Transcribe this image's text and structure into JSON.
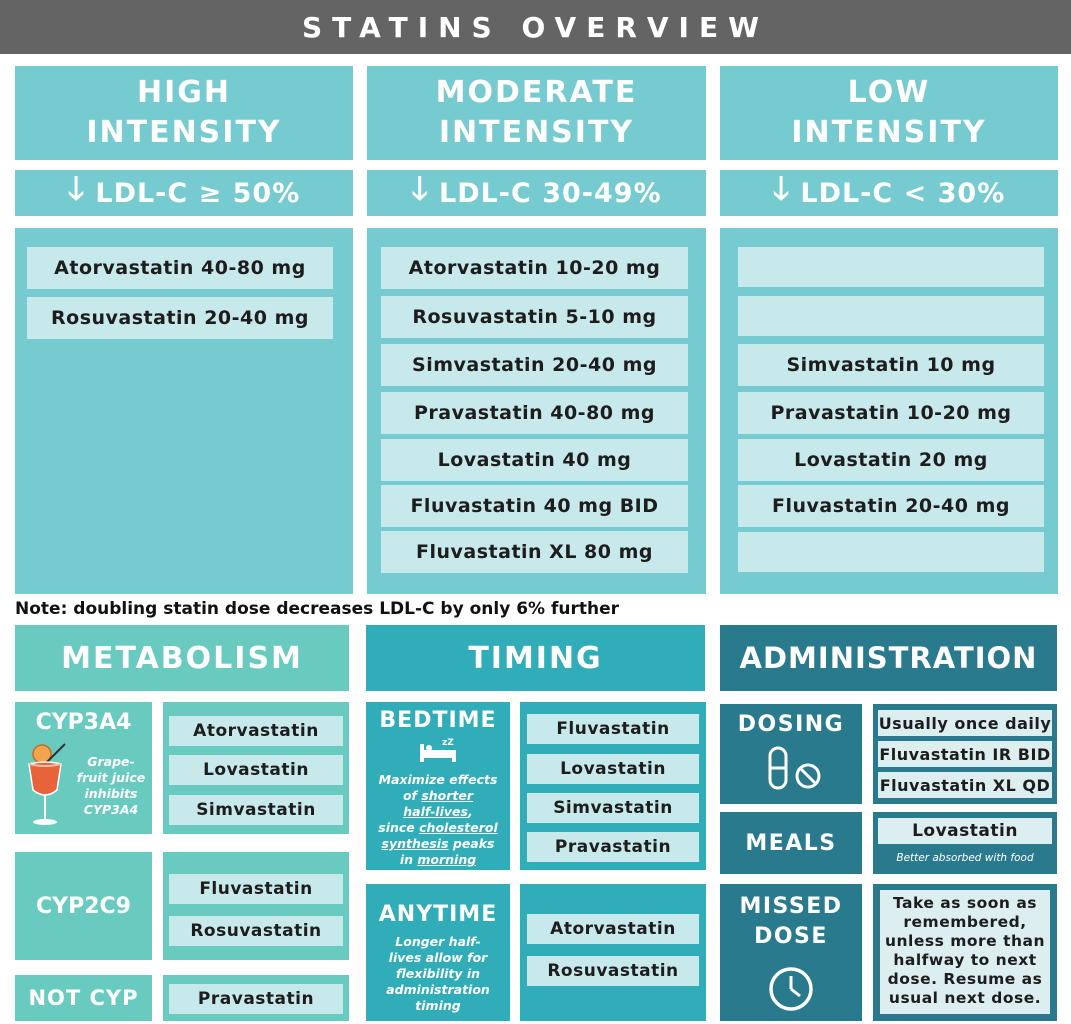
{
  "title": "STATINS OVERVIEW",
  "intensity": {
    "high": {
      "line1": "HIGH",
      "line2": "INTENSITY",
      "ldl": "LDL-C ≥ 50%",
      "drugs": [
        "Atorvastatin 40-80 mg",
        "Rosuvastatin 20-40 mg"
      ]
    },
    "moderate": {
      "line1": "MODERATE",
      "line2": "INTENSITY",
      "ldl": "LDL-C 30-49%",
      "drugs": [
        "Atorvastatin 10-20 mg",
        "Rosuvastatin 5-10 mg",
        "Simvastatin 20-40 mg",
        "Pravastatin 40-80 mg",
        "Lovastatin 40 mg",
        "Fluvastatin 40 mg BID",
        "Fluvastatin XL 80 mg"
      ]
    },
    "low": {
      "line1": "LOW",
      "line2": "INTENSITY",
      "ldl": "LDL-C < 30%",
      "drugs": [
        "",
        "",
        "Simvastatin 10 mg",
        "Pravastatin 10-20 mg",
        "Lovastatin 20 mg",
        "Fluvastatin 20-40 mg",
        ""
      ]
    },
    "arrow_icon": "down-arrow-icon"
  },
  "note": "Note: doubling statin dose decreases LDL-C by only 6% further",
  "metabolism": {
    "header": "METABOLISM",
    "cyp3a4": {
      "label": "CYP3A4",
      "caption": [
        "Grape-",
        "fruit juice",
        "inhibits",
        "CYP3A4"
      ],
      "icon": "grapefruit-drink-icon",
      "drugs": [
        "Atorvastatin",
        "Lovastatin",
        "Simvastatin"
      ]
    },
    "cyp2c9": {
      "label": "CYP2C9",
      "drugs": [
        "Fluvastatin",
        "Rosuvastatin"
      ]
    },
    "notcyp": {
      "label": "NOT CYP",
      "drugs": [
        "Pravastatin"
      ]
    }
  },
  "timing": {
    "header": "TIMING",
    "bedtime": {
      "label": "BEDTIME",
      "icon": "bed-sleep-icon",
      "drugs": [
        "Fluvastatin",
        "Lovastatin",
        "Simvastatin",
        "Pravastatin"
      ],
      "text": {
        "t1": "Maximize effects",
        "t2": "of ",
        "t2u": "shorter",
        "t3u": "half-lives",
        "t3": ",",
        "t4": "since ",
        "t4u": "cholesterol",
        "t5u": "synthesis",
        "t5": " peaks",
        "t6": "in ",
        "t6u": "morning"
      }
    },
    "anytime": {
      "label": "ANYTIME",
      "text": [
        "Longer half-",
        "lives allow for",
        "flexibility in",
        "administration",
        "timing"
      ],
      "drugs": [
        "Atorvastatin",
        "Rosuvastatin"
      ]
    }
  },
  "administration": {
    "header": "ADMINISTRATION",
    "dosing": {
      "label": "DOSING",
      "icon": "pill-no-icon",
      "items": [
        "Usually once daily",
        "Fluvastatin IR BID",
        "Fluvastatin XL QD"
      ]
    },
    "meals": {
      "label": "MEALS",
      "drug": "Lovastatin",
      "caption": "Better absorbed with food"
    },
    "missed": {
      "line1": "MISSED",
      "line2": "DOSE",
      "icon": "clock-icon",
      "text": [
        "Take as soon as",
        "remembered,",
        "unless more than",
        "halfway to next",
        "dose. Resume as",
        "usual next dose."
      ]
    }
  },
  "colors": {
    "teal_light": "#76cbd0",
    "pill": "#c8e9ec",
    "metabolism": "#69cbc0",
    "timing": "#30adb8",
    "admin": "#2a7a8e",
    "title_bg": "#646464"
  }
}
